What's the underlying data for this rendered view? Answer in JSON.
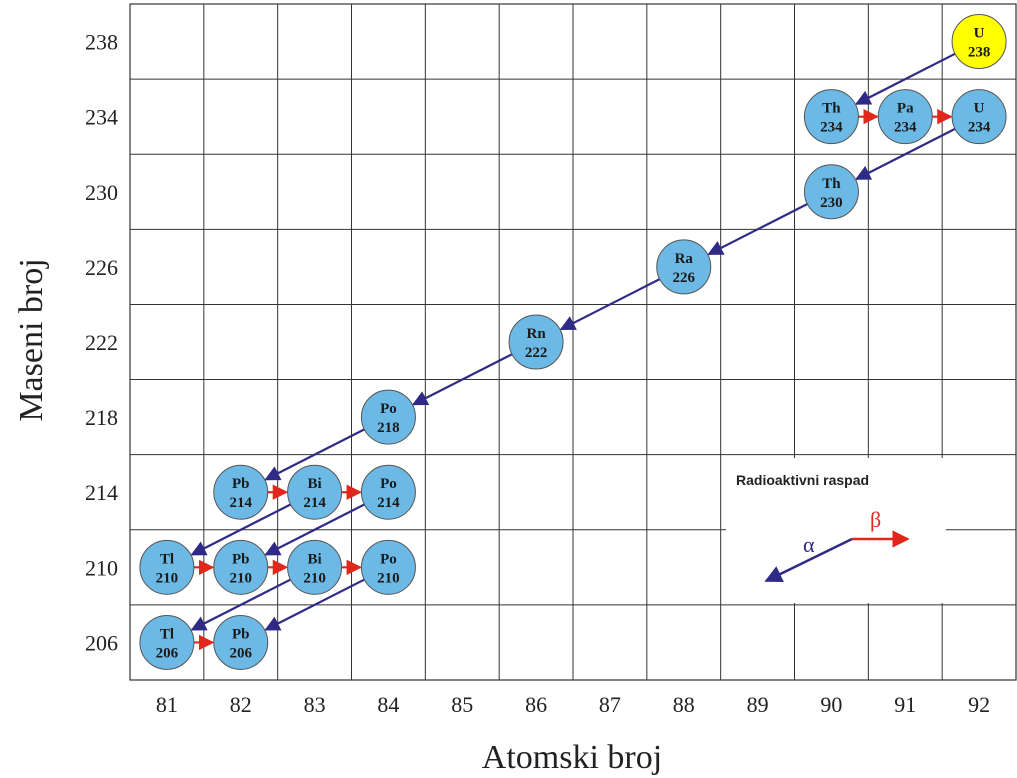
{
  "chart_data": {
    "type": "scatter",
    "xlabel": "Atomski broj",
    "ylabel": "Maseni broj",
    "x_ticks": [
      "81",
      "82",
      "83",
      "84",
      "85",
      "86",
      "87",
      "88",
      "89",
      "90",
      "91",
      "92"
    ],
    "y_ticks": [
      "206",
      "210",
      "214",
      "218",
      "222",
      "226",
      "230",
      "234",
      "238"
    ],
    "grid": true,
    "nuclides": [
      {
        "symbol": "U",
        "mass": "238",
        "x": 92,
        "y": 238,
        "highlight": true
      },
      {
        "symbol": "Th",
        "mass": "234",
        "x": 90,
        "y": 234
      },
      {
        "symbol": "Pa",
        "mass": "234",
        "x": 91,
        "y": 234
      },
      {
        "symbol": "U",
        "mass": "234",
        "x": 92,
        "y": 234
      },
      {
        "symbol": "Th",
        "mass": "230",
        "x": 90,
        "y": 230
      },
      {
        "symbol": "Ra",
        "mass": "226",
        "x": 88,
        "y": 226
      },
      {
        "symbol": "Rn",
        "mass": "222",
        "x": 86,
        "y": 222
      },
      {
        "symbol": "Po",
        "mass": "218",
        "x": 84,
        "y": 218
      },
      {
        "symbol": "Pb",
        "mass": "214",
        "x": 82,
        "y": 214
      },
      {
        "symbol": "Bi",
        "mass": "214",
        "x": 83,
        "y": 214
      },
      {
        "symbol": "Po",
        "mass": "214",
        "x": 84,
        "y": 214
      },
      {
        "symbol": "Tl",
        "mass": "210",
        "x": 81,
        "y": 210
      },
      {
        "symbol": "Pb",
        "mass": "210",
        "x": 82,
        "y": 210
      },
      {
        "symbol": "Bi",
        "mass": "210",
        "x": 83,
        "y": 210
      },
      {
        "symbol": "Po",
        "mass": "210",
        "x": 84,
        "y": 210
      },
      {
        "symbol": "Tl",
        "mass": "206",
        "x": 81,
        "y": 206
      },
      {
        "symbol": "Pb",
        "mass": "206",
        "x": 82,
        "y": 206
      }
    ],
    "decays": [
      {
        "type": "alpha",
        "from": [
          92,
          238
        ],
        "to": [
          90,
          234
        ]
      },
      {
        "type": "beta",
        "from": [
          90,
          234
        ],
        "to": [
          91,
          234
        ]
      },
      {
        "type": "beta",
        "from": [
          91,
          234
        ],
        "to": [
          92,
          234
        ]
      },
      {
        "type": "alpha",
        "from": [
          92,
          234
        ],
        "to": [
          90,
          230
        ]
      },
      {
        "type": "alpha",
        "from": [
          90,
          230
        ],
        "to": [
          88,
          226
        ]
      },
      {
        "type": "alpha",
        "from": [
          88,
          226
        ],
        "to": [
          86,
          222
        ]
      },
      {
        "type": "alpha",
        "from": [
          86,
          222
        ],
        "to": [
          84,
          218
        ]
      },
      {
        "type": "alpha",
        "from": [
          84,
          218
        ],
        "to": [
          82,
          214
        ]
      },
      {
        "type": "beta",
        "from": [
          82,
          214
        ],
        "to": [
          83,
          214
        ]
      },
      {
        "type": "beta",
        "from": [
          83,
          214
        ],
        "to": [
          84,
          214
        ]
      },
      {
        "type": "alpha",
        "from": [
          83,
          214
        ],
        "to": [
          81,
          210
        ]
      },
      {
        "type": "alpha",
        "from": [
          84,
          214
        ],
        "to": [
          82,
          210
        ]
      },
      {
        "type": "beta",
        "from": [
          81,
          210
        ],
        "to": [
          82,
          210
        ]
      },
      {
        "type": "beta",
        "from": [
          82,
          210
        ],
        "to": [
          83,
          210
        ]
      },
      {
        "type": "beta",
        "from": [
          83,
          210
        ],
        "to": [
          84,
          210
        ]
      },
      {
        "type": "alpha",
        "from": [
          83,
          210
        ],
        "to": [
          81,
          206
        ]
      },
      {
        "type": "alpha",
        "from": [
          84,
          210
        ],
        "to": [
          82,
          206
        ]
      },
      {
        "type": "beta",
        "from": [
          81,
          206
        ],
        "to": [
          82,
          206
        ]
      }
    ],
    "legend": {
      "title": "Radioaktivni raspad",
      "alpha_label": "α",
      "beta_label": "β",
      "position": "bottom-right"
    }
  },
  "colors": {
    "node_fill": "#6cb9e6",
    "node_highlight": "#ffff00",
    "alpha_arrow": "#2e2a85",
    "beta_arrow": "#e1261c",
    "grid": "#333333"
  }
}
